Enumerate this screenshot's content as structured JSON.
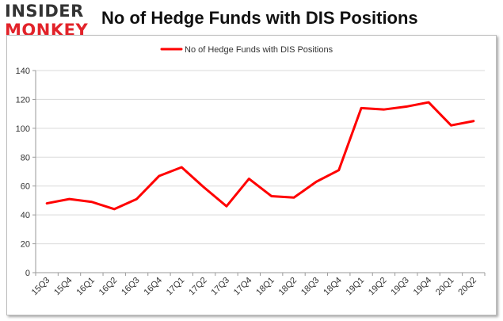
{
  "logo": {
    "line1": "INSIDER",
    "line2": "MONKEY"
  },
  "chart_data": {
    "type": "line",
    "title": "No of Hedge Funds with DIS Positions",
    "xlabel": "",
    "ylabel": "",
    "categories": [
      "15Q3",
      "15Q4",
      "16Q1",
      "16Q2",
      "16Q3",
      "16Q4",
      "17Q1",
      "17Q2",
      "17Q3",
      "17Q4",
      "18Q1",
      "18Q2",
      "18Q3",
      "18Q4",
      "19Q1",
      "19Q2",
      "19Q3",
      "19Q4",
      "20Q1",
      "20Q2"
    ],
    "series": [
      {
        "name": "No of Hedge Funds with DIS Positions",
        "color": "#ff0000",
        "values": [
          48,
          51,
          49,
          44,
          51,
          67,
          73,
          59,
          46,
          65,
          53,
          52,
          63,
          71,
          114,
          113,
          115,
          118,
          102,
          105
        ]
      }
    ],
    "ylim": [
      0,
      140
    ],
    "yticks": [
      0,
      20,
      40,
      60,
      80,
      100,
      120,
      140
    ],
    "grid": true,
    "legend": "top-center"
  }
}
